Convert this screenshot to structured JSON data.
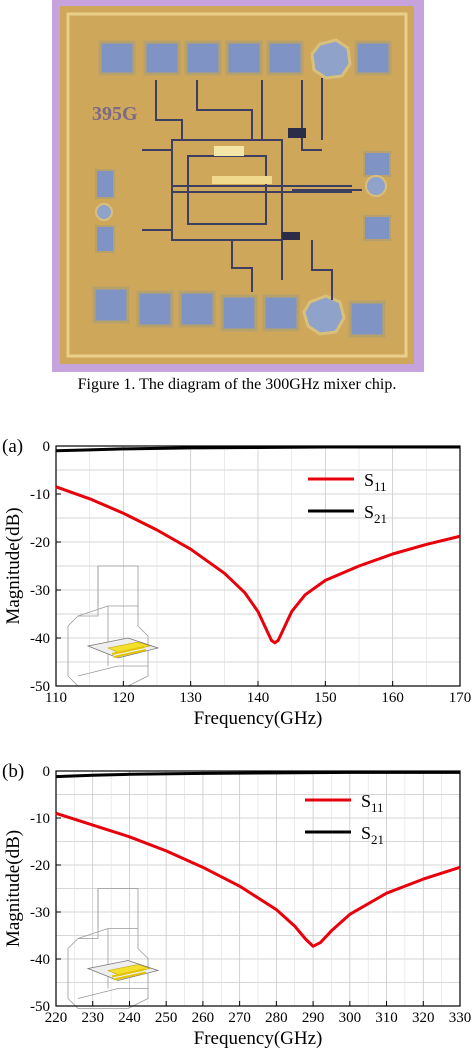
{
  "figure1": {
    "caption": "Figure 1. The diagram of the 300GHz mixer chip.",
    "chip_label": "395G",
    "colors": {
      "die": "#d9b45c",
      "border": "#b98fd6",
      "pad": "#7f93c4"
    }
  },
  "chart_data": [
    {
      "type": "line",
      "panel_label": "(a)",
      "xlabel": "Frequency(GHz)",
      "ylabel": "Magnitude(dB)",
      "xlim": [
        110,
        170
      ],
      "ylim": [
        -50,
        0
      ],
      "xticks": [
        110,
        120,
        130,
        140,
        150,
        160,
        170
      ],
      "yticks": [
        0,
        -10,
        -20,
        -30,
        -40,
        -50
      ],
      "grid": true,
      "legend_position": "top-right",
      "inset": "3D model of transition structure, lower-left",
      "series": [
        {
          "name": "S11",
          "color": "#e8000b",
          "x": [
            110,
            115,
            120,
            125,
            130,
            135,
            138,
            140,
            141,
            142,
            142.5,
            143,
            144,
            145,
            147,
            150,
            155,
            160,
            165,
            170
          ],
          "y": [
            -8.5,
            -11,
            -14,
            -17.5,
            -21.5,
            -26.5,
            -30.5,
            -34.5,
            -37.5,
            -40.5,
            -41,
            -40.5,
            -37.5,
            -34.5,
            -31,
            -28,
            -25,
            -22.5,
            -20.5,
            -18.8
          ]
        },
        {
          "name": "S21",
          "color": "#000000",
          "x": [
            110,
            115,
            120,
            130,
            140,
            150,
            160,
            170
          ],
          "y": [
            -1.0,
            -0.8,
            -0.6,
            -0.4,
            -0.3,
            -0.2,
            -0.2,
            -0.2
          ]
        }
      ]
    },
    {
      "type": "line",
      "panel_label": "(b)",
      "xlabel": "Frequency(GHz)",
      "ylabel": "Magnitude(dB)",
      "xlim": [
        220,
        330
      ],
      "ylim": [
        -50,
        0
      ],
      "xticks": [
        220,
        230,
        240,
        250,
        260,
        270,
        280,
        290,
        300,
        310,
        320,
        330
      ],
      "yticks": [
        0,
        -10,
        -20,
        -30,
        -40,
        -50
      ],
      "grid": true,
      "legend_position": "top-right",
      "inset": "3D model of transition structure, lower-left",
      "series": [
        {
          "name": "S11",
          "color": "#e8000b",
          "x": [
            220,
            230,
            240,
            250,
            260,
            270,
            280,
            285,
            288,
            290,
            292,
            295,
            300,
            310,
            320,
            330
          ],
          "y": [
            -9,
            -11.5,
            -14,
            -17,
            -20.5,
            -24.5,
            -29.5,
            -33,
            -35.8,
            -37.3,
            -36.5,
            -34,
            -30.5,
            -26,
            -23,
            -20.5
          ]
        },
        {
          "name": "S21",
          "color": "#000000",
          "x": [
            220,
            230,
            240,
            260,
            280,
            300,
            330
          ],
          "y": [
            -1.2,
            -0.9,
            -0.7,
            -0.5,
            -0.4,
            -0.3,
            -0.3
          ]
        }
      ]
    }
  ]
}
